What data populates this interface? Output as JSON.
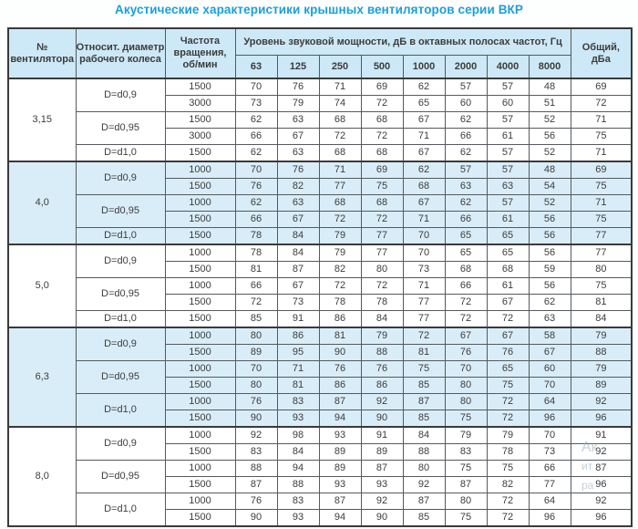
{
  "title": "Акустические характеристики крышных вентиляторов серии ВКР",
  "colors": {
    "title_accent": "#1b9fd8",
    "header_bg": "#cde8f6",
    "shaded_group_bg": "#d9edf8",
    "border_dark": "#3a3a3a",
    "text": "#3c3c3c"
  },
  "watermark": {
    "line1": "Ак",
    "line2": "ит",
    "line3": "ра"
  },
  "table": {
    "header": {
      "fan": "№\nвентилятора",
      "diameter": "Относит. диаметр\nрабочего колеса",
      "rpm": "Частота\nвращения,\nоб/мин",
      "spl_group": "Уровень звуковой мощности, дБ в октавных полосах частот, Гц",
      "freqs": [
        "63",
        "125",
        "250",
        "500",
        "1000",
        "2000",
        "4000",
        "8000"
      ],
      "total": "Общий,\nдБа"
    },
    "groups": [
      {
        "fan": "3,15",
        "shaded": false,
        "sub": [
          {
            "d": "D=d0,9",
            "rows": [
              {
                "rpm": "1500",
                "v": [
                  70,
                  76,
                  71,
                  69,
                  62,
                  57,
                  57,
                  48
                ],
                "total": 69
              },
              {
                "rpm": "3000",
                "v": [
                  73,
                  79,
                  74,
                  72,
                  65,
                  60,
                  60,
                  51
                ],
                "total": 72
              }
            ]
          },
          {
            "d": "D=d0,95",
            "rows": [
              {
                "rpm": "1500",
                "v": [
                  62,
                  63,
                  68,
                  68,
                  67,
                  62,
                  57,
                  52
                ],
                "total": 71
              },
              {
                "rpm": "3000",
                "v": [
                  66,
                  67,
                  72,
                  72,
                  71,
                  66,
                  61,
                  56
                ],
                "total": 75
              }
            ]
          },
          {
            "d": "D=d1,0",
            "rows": [
              {
                "rpm": "1500",
                "v": [
                  62,
                  63,
                  68,
                  68,
                  67,
                  62,
                  57,
                  52
                ],
                "total": 71
              }
            ]
          }
        ]
      },
      {
        "fan": "4,0",
        "shaded": true,
        "sub": [
          {
            "d": "D=d0,9",
            "rows": [
              {
                "rpm": "1000",
                "v": [
                  70,
                  76,
                  71,
                  69,
                  62,
                  57,
                  57,
                  48
                ],
                "total": 69
              },
              {
                "rpm": "1500",
                "v": [
                  76,
                  82,
                  77,
                  75,
                  68,
                  63,
                  63,
                  54
                ],
                "total": 75
              }
            ]
          },
          {
            "d": "D=d0,95",
            "rows": [
              {
                "rpm": "1000",
                "v": [
                  62,
                  63,
                  68,
                  68,
                  67,
                  62,
                  57,
                  52
                ],
                "total": 71
              },
              {
                "rpm": "1500",
                "v": [
                  66,
                  67,
                  72,
                  72,
                  71,
                  66,
                  61,
                  56
                ],
                "total": 75
              }
            ]
          },
          {
            "d": "D=d1,0",
            "rows": [
              {
                "rpm": "1500",
                "v": [
                  78,
                  84,
                  79,
                  77,
                  70,
                  65,
                  65,
                  56
                ],
                "total": 77
              }
            ]
          }
        ]
      },
      {
        "fan": "5,0",
        "shaded": false,
        "sub": [
          {
            "d": "D=d0,9",
            "rows": [
              {
                "rpm": "1000",
                "v": [
                  78,
                  84,
                  79,
                  77,
                  70,
                  65,
                  65,
                  56
                ],
                "total": 77
              },
              {
                "rpm": "1500",
                "v": [
                  81,
                  87,
                  82,
                  80,
                  73,
                  68,
                  68,
                  59
                ],
                "total": 80
              }
            ]
          },
          {
            "d": "D=d0,95",
            "rows": [
              {
                "rpm": "1000",
                "v": [
                  66,
                  67,
                  72,
                  72,
                  71,
                  66,
                  61,
                  56
                ],
                "total": 75
              },
              {
                "rpm": "1500",
                "v": [
                  72,
                  73,
                  78,
                  78,
                  77,
                  72,
                  67,
                  62
                ],
                "total": 81
              }
            ]
          },
          {
            "d": "D=d1,0",
            "rows": [
              {
                "rpm": "1500",
                "v": [
                  85,
                  91,
                  86,
                  84,
                  77,
                  72,
                  72,
                  63
                ],
                "total": 84
              }
            ]
          }
        ]
      },
      {
        "fan": "6,3",
        "shaded": true,
        "sub": [
          {
            "d": "D=d0,9",
            "rows": [
              {
                "rpm": "1000",
                "v": [
                  80,
                  86,
                  81,
                  79,
                  72,
                  67,
                  67,
                  58
                ],
                "total": 79
              },
              {
                "rpm": "1500",
                "v": [
                  89,
                  95,
                  90,
                  88,
                  81,
                  76,
                  76,
                  67
                ],
                "total": 88
              }
            ]
          },
          {
            "d": "D=d0,95",
            "rows": [
              {
                "rpm": "1000",
                "v": [
                  70,
                  71,
                  76,
                  76,
                  75,
                  70,
                  65,
                  60
                ],
                "total": 79
              },
              {
                "rpm": "1500",
                "v": [
                  80,
                  81,
                  86,
                  86,
                  85,
                  80,
                  75,
                  70
                ],
                "total": 89
              }
            ]
          },
          {
            "d": "D=d1,0",
            "rows": [
              {
                "rpm": "1000",
                "v": [
                  76,
                  83,
                  87,
                  92,
                  87,
                  80,
                  72,
                  64
                ],
                "total": 92
              },
              {
                "rpm": "1500",
                "v": [
                  90,
                  93,
                  94,
                  90,
                  85,
                  75,
                  72,
                  96
                ],
                "total": 96
              }
            ]
          }
        ]
      },
      {
        "fan": "8,0",
        "shaded": false,
        "sub": [
          {
            "d": "D=d0,9",
            "rows": [
              {
                "rpm": "1000",
                "v": [
                  92,
                  98,
                  93,
                  91,
                  84,
                  79,
                  79,
                  70
                ],
                "total": 91
              },
              {
                "rpm": "1500",
                "v": [
                  83,
                  84,
                  89,
                  89,
                  88,
                  83,
                  78,
                  73
                ],
                "total": 92
              }
            ]
          },
          {
            "d": "D=d0,95",
            "rows": [
              {
                "rpm": "1000",
                "v": [
                  88,
                  94,
                  89,
                  87,
                  80,
                  75,
                  75,
                  66
                ],
                "total": 87
              },
              {
                "rpm": "1500",
                "v": [
                  87,
                  88,
                  93,
                  93,
                  92,
                  87,
                  82,
                  77
                ],
                "total": 96
              }
            ]
          },
          {
            "d": "D=d1,0",
            "rows": [
              {
                "rpm": "1000",
                "v": [
                  76,
                  83,
                  87,
                  92,
                  87,
                  80,
                  72,
                  64
                ],
                "total": 92
              },
              {
                "rpm": "1500",
                "v": [
                  90,
                  93,
                  94,
                  90,
                  85,
                  75,
                  72,
                  96
                ],
                "total": 96
              }
            ]
          }
        ]
      }
    ]
  }
}
